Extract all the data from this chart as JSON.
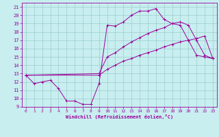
{
  "xlabel": "Windchill (Refroidissement éolien,°C)",
  "bg_color": "#c8eef0",
  "line_color": "#990099",
  "grid_color": "#99cccc",
  "xlim": [
    -0.5,
    23.5
  ],
  "ylim": [
    9,
    21.5
  ],
  "xticks": [
    0,
    1,
    2,
    3,
    4,
    5,
    6,
    7,
    8,
    9,
    10,
    11,
    12,
    13,
    14,
    15,
    16,
    17,
    18,
    19,
    20,
    21,
    22,
    23
  ],
  "yticks": [
    9,
    10,
    11,
    12,
    13,
    14,
    15,
    16,
    17,
    18,
    19,
    20,
    21
  ],
  "line1_x": [
    0,
    1,
    2,
    3,
    4,
    5,
    6,
    7,
    8,
    9,
    10,
    11,
    12,
    13,
    14,
    15,
    16,
    17,
    18,
    19,
    20,
    21,
    22,
    23
  ],
  "line1_y": [
    12.8,
    11.8,
    12.0,
    12.2,
    11.2,
    9.7,
    9.7,
    9.3,
    9.3,
    11.8,
    18.8,
    18.7,
    19.2,
    20.0,
    20.5,
    20.5,
    20.8,
    19.5,
    19.0,
    18.8,
    17.0,
    15.2,
    15.0,
    14.8
  ],
  "line2_x": [
    0,
    9,
    10,
    11,
    12,
    13,
    14,
    15,
    16,
    17,
    18,
    19,
    20,
    21,
    22,
    23
  ],
  "line2_y": [
    12.8,
    13.0,
    15.0,
    15.5,
    16.2,
    16.8,
    17.3,
    17.8,
    18.2,
    18.5,
    19.0,
    19.2,
    18.8,
    17.0,
    15.2,
    14.8
  ],
  "line3_x": [
    0,
    9,
    10,
    11,
    12,
    13,
    14,
    15,
    16,
    17,
    18,
    19,
    20,
    21,
    22,
    23
  ],
  "line3_y": [
    12.8,
    12.8,
    13.5,
    14.0,
    14.5,
    14.8,
    15.2,
    15.5,
    15.8,
    16.2,
    16.5,
    16.8,
    17.0,
    17.2,
    17.5,
    14.8
  ]
}
